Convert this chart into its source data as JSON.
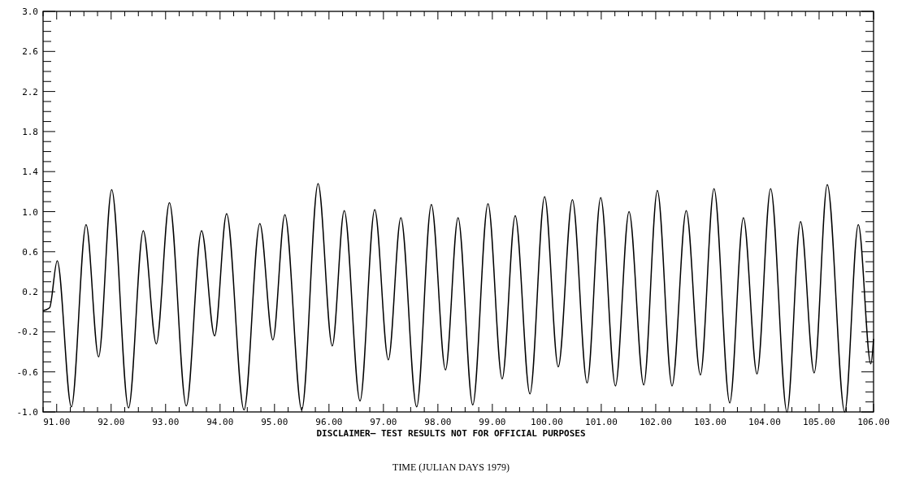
{
  "chart_data": {
    "type": "line",
    "xlabel": "TIME (JULIAN DAYS 1979)",
    "annotations": [
      "DISCLAIMER— TEST RESULTS NOT FOR OFFICIAL PURPOSES"
    ],
    "xlim": [
      90.75,
      106
    ],
    "ylim": [
      -1,
      3
    ],
    "grid": false,
    "marker": "none",
    "line_style": "solid",
    "xticks": [
      {
        "value": 90.75,
        "label": null
      },
      {
        "value": 91,
        "label": "91.00"
      },
      {
        "value": 91.25,
        "label": null
      },
      {
        "value": 91.5,
        "label": null
      },
      {
        "value": 91.75,
        "label": null
      },
      {
        "value": 92,
        "label": "92.00"
      },
      {
        "value": 92.25,
        "label": null
      },
      {
        "value": 92.5,
        "label": null
      },
      {
        "value": 92.75,
        "label": null
      },
      {
        "value": 93,
        "label": "93.00"
      },
      {
        "value": 93.25,
        "label": null
      },
      {
        "value": 93.5,
        "label": null
      },
      {
        "value": 93.75,
        "label": null
      },
      {
        "value": 94,
        "label": "94.00"
      },
      {
        "value": 94.25,
        "label": null
      },
      {
        "value": 94.5,
        "label": null
      },
      {
        "value": 94.75,
        "label": null
      },
      {
        "value": 95,
        "label": "95.00"
      },
      {
        "value": 95.25,
        "label": null
      },
      {
        "value": 95.5,
        "label": null
      },
      {
        "value": 95.75,
        "label": null
      },
      {
        "value": 96,
        "label": "96.00"
      },
      {
        "value": 96.25,
        "label": null
      },
      {
        "value": 96.5,
        "label": null
      },
      {
        "value": 96.75,
        "label": null
      },
      {
        "value": 97,
        "label": "97.00"
      },
      {
        "value": 97.25,
        "label": null
      },
      {
        "value": 97.5,
        "label": null
      },
      {
        "value": 97.75,
        "label": null
      },
      {
        "value": 98,
        "label": "98.00"
      },
      {
        "value": 98.25,
        "label": null
      },
      {
        "value": 98.5,
        "label": null
      },
      {
        "value": 98.75,
        "label": null
      },
      {
        "value": 99,
        "label": "99.00"
      },
      {
        "value": 99.25,
        "label": null
      },
      {
        "value": 99.5,
        "label": null
      },
      {
        "value": 99.75,
        "label": null
      },
      {
        "value": 100,
        "label": "100.00"
      },
      {
        "value": 100.25,
        "label": null
      },
      {
        "value": 100.5,
        "label": null
      },
      {
        "value": 100.75,
        "label": null
      },
      {
        "value": 101,
        "label": "101.00"
      },
      {
        "value": 101.25,
        "label": null
      },
      {
        "value": 101.5,
        "label": null
      },
      {
        "value": 101.75,
        "label": null
      },
      {
        "value": 102,
        "label": "102.00"
      },
      {
        "value": 102.25,
        "label": null
      },
      {
        "value": 102.5,
        "label": null
      },
      {
        "value": 102.75,
        "label": null
      },
      {
        "value": 103,
        "label": "103.00"
      },
      {
        "value": 103.25,
        "label": null
      },
      {
        "value": 103.5,
        "label": null
      },
      {
        "value": 103.75,
        "label": null
      },
      {
        "value": 104,
        "label": "104.00"
      },
      {
        "value": 104.25,
        "label": null
      },
      {
        "value": 104.5,
        "label": null
      },
      {
        "value": 104.75,
        "label": null
      },
      {
        "value": 105,
        "label": "105.00"
      },
      {
        "value": 105.25,
        "label": null
      },
      {
        "value": 105.5,
        "label": null
      },
      {
        "value": 105.75,
        "label": null
      },
      {
        "value": 106,
        "label": "106.00"
      }
    ],
    "yticks": [
      {
        "value": -1,
        "label": "-1.0"
      },
      {
        "value": -0.9,
        "label": null
      },
      {
        "value": -0.8,
        "label": null
      },
      {
        "value": -0.7,
        "label": null
      },
      {
        "value": -0.6,
        "label": "-0.6"
      },
      {
        "value": -0.5,
        "label": null
      },
      {
        "value": -0.4,
        "label": null
      },
      {
        "value": -0.3,
        "label": null
      },
      {
        "value": -0.2,
        "label": "-0.2"
      },
      {
        "value": -0.1,
        "label": null
      },
      {
        "value": 0,
        "label": null
      },
      {
        "value": 0.1,
        "label": null
      },
      {
        "value": 0.2,
        "label": "0.2"
      },
      {
        "value": 0.3,
        "label": null
      },
      {
        "value": 0.4,
        "label": null
      },
      {
        "value": 0.5,
        "label": null
      },
      {
        "value": 0.6,
        "label": "0.6"
      },
      {
        "value": 0.7,
        "label": null
      },
      {
        "value": 0.8,
        "label": null
      },
      {
        "value": 0.9,
        "label": null
      },
      {
        "value": 1,
        "label": "1.0"
      },
      {
        "value": 1.1,
        "label": null
      },
      {
        "value": 1.2,
        "label": null
      },
      {
        "value": 1.3,
        "label": null
      },
      {
        "value": 1.4,
        "label": "1.4"
      },
      {
        "value": 1.5,
        "label": null
      },
      {
        "value": 1.6,
        "label": null
      },
      {
        "value": 1.7,
        "label": null
      },
      {
        "value": 1.8,
        "label": "1.8"
      },
      {
        "value": 1.9,
        "label": null
      },
      {
        "value": 2,
        "label": null
      },
      {
        "value": 2.1,
        "label": null
      },
      {
        "value": 2.2,
        "label": "2.2"
      },
      {
        "value": 2.3,
        "label": null
      },
      {
        "value": 2.4,
        "label": null
      },
      {
        "value": 2.5,
        "label": null
      },
      {
        "value": 2.6,
        "label": "2.6"
      },
      {
        "value": 2.7,
        "label": null
      },
      {
        "value": 2.8,
        "label": null
      },
      {
        "value": 2.9,
        "label": null
      },
      {
        "value": 3,
        "label": "3.0"
      }
    ],
    "series": [
      {
        "color": "#000000",
        "x": [
          90.75,
          90.87,
          91.01,
          91.27,
          91.54,
          91.77,
          92.01,
          92.32,
          92.59,
          92.83,
          93.07,
          93.38,
          93.66,
          93.9,
          94.12,
          94.44,
          94.73,
          94.97,
          95.19,
          95.5,
          95.8,
          96.06,
          96.28,
          96.57,
          96.84,
          97.09,
          97.32,
          97.61,
          97.88,
          98.14,
          98.37,
          98.64,
          98.92,
          99.18,
          99.42,
          99.69,
          99.96,
          100.21,
          100.47,
          100.74,
          100.99,
          101.26,
          101.51,
          101.78,
          102.03,
          102.3,
          102.56,
          102.82,
          103.07,
          103.36,
          103.61,
          103.86,
          104.11,
          104.41,
          104.66,
          104.91,
          105.15,
          105.47,
          105.72,
          105.95,
          106
        ],
        "values": [
          0.01,
          0.04,
          0.51,
          -0.95,
          0.87,
          -0.45,
          1.22,
          -0.96,
          0.81,
          -0.32,
          1.09,
          -0.94,
          0.81,
          -0.24,
          0.98,
          -0.98,
          0.88,
          -0.28,
          0.97,
          -0.98,
          1.28,
          -0.34,
          1.01,
          -0.89,
          1.02,
          -0.48,
          0.94,
          -0.95,
          1.07,
          -0.58,
          0.94,
          -0.93,
          1.08,
          -0.67,
          0.96,
          -0.82,
          1.15,
          -0.55,
          1.12,
          -0.71,
          1.14,
          -0.74,
          1.0,
          -0.73,
          1.21,
          -0.74,
          1.01,
          -0.63,
          1.23,
          -0.91,
          0.94,
          -0.62,
          1.23,
          -1.0,
          0.9,
          -0.61,
          1.27,
          -1.0,
          0.87,
          -0.52,
          -0.27
        ]
      }
    ]
  }
}
